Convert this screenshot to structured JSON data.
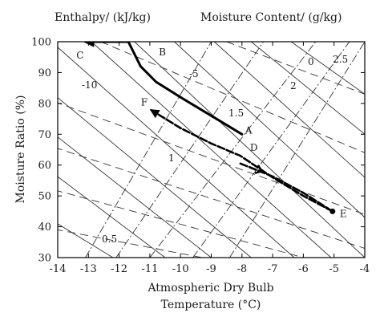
{
  "chart_data": {
    "type": "line",
    "title_left": "Enthalpy/ (kJ/kg)",
    "title_right": "Moisture Content/ (g/kg)",
    "xlabel_line1": "Atmospheric Dry Bulb",
    "xlabel_line2": "Temperature (°C)",
    "ylabel": "Moisture Ratio (%)",
    "xlim": [
      -14,
      -4
    ],
    "ylim": [
      30,
      100
    ],
    "x_ticks": [
      -14,
      -13,
      -12,
      -11,
      -10,
      -9,
      -8,
      -7,
      -6,
      -5,
      -4
    ],
    "y_ticks": [
      30,
      40,
      50,
      60,
      70,
      80,
      90,
      100
    ],
    "grid": false,
    "enthalpy_isolines": [
      {
        "label": "-10",
        "x": [
          -14.5,
          -4
        ],
        "y": [
          82,
          44
        ]
      },
      {
        "label": "-5",
        "x": [
          -12.6,
          -4
        ],
        "y": [
          100,
          64
        ]
      },
      {
        "label": "0",
        "x": [
          -8.5,
          -4
        ],
        "y": [
          100,
          83
        ]
      },
      {
        "label": "",
        "x": [
          -14.5,
          -4
        ],
        "y": [
          67,
          33
        ]
      },
      {
        "label": "",
        "x": [
          -14.5,
          -6
        ],
        "y": [
          53,
          30
        ]
      },
      {
        "label": "",
        "x": [
          -14.5,
          -9.3
        ],
        "y": [
          40,
          30
        ]
      }
    ],
    "moisture_isolines": [
      {
        "label": "0.5",
        "x": [
          -13.1,
          -9.0
        ],
        "y": [
          30,
          100
        ]
      },
      {
        "label": "1",
        "x": [
          -12.1,
          -7.3
        ],
        "y": [
          30,
          100
        ]
      },
      {
        "label": "1.5",
        "x": [
          -11.0,
          -5.6
        ],
        "y": [
          30,
          100
        ]
      },
      {
        "label": "2",
        "x": [
          -9.6,
          -4.5
        ],
        "y": [
          30,
          100
        ]
      },
      {
        "label": "2.5",
        "x": [
          -8.4,
          -4.0
        ],
        "y": [
          30,
          100
        ]
      }
    ],
    "temperature_isolines": [
      {
        "x": [
          -14.5,
          -12.2
        ],
        "y": [
          44,
          30
        ]
      },
      {
        "x": [
          -14.5,
          -10.5
        ],
        "y": [
          60,
          30
        ]
      },
      {
        "x": [
          -14.5,
          -9.0
        ],
        "y": [
          73,
          30
        ]
      },
      {
        "x": [
          -14.5,
          -7.7
        ],
        "y": [
          86,
          30
        ]
      },
      {
        "x": [
          -14.2,
          -6.3
        ],
        "y": [
          100,
          30
        ]
      },
      {
        "x": [
          -12.9,
          -5.1
        ],
        "y": [
          100,
          30
        ]
      },
      {
        "x": [
          -11.5,
          -4.0
        ],
        "y": [
          100,
          30
        ]
      },
      {
        "x": [
          -10.2,
          -4.0
        ],
        "y": [
          100,
          43
        ]
      },
      {
        "x": [
          -8.9,
          -4.0
        ],
        "y": [
          100,
          56
        ]
      },
      {
        "x": [
          -7.7,
          -4.0
        ],
        "y": [
          100,
          70
        ]
      },
      {
        "x": [
          -6.4,
          -4.0
        ],
        "y": [
          100,
          83
        ]
      }
    ],
    "points": [
      {
        "label": "A",
        "x": -8.0,
        "y": 70,
        "dx": 4,
        "dy": -1
      },
      {
        "label": "B",
        "x": -11.7,
        "y": 100,
        "dx": 38,
        "dy": 17
      },
      {
        "label": "C",
        "x": -13.0,
        "y": 100,
        "dx": -15,
        "dy": 21
      },
      {
        "label": "D",
        "x": -8.05,
        "y": 63,
        "dx": 12,
        "dy": -6
      },
      {
        "label": "E",
        "x": -5.05,
        "y": 45,
        "dx": 9,
        "dy": 7
      },
      {
        "label": "F",
        "x": -10.95,
        "y": 77.8,
        "dx": -13,
        "dy": -6
      }
    ],
    "series": [
      {
        "style": "solid",
        "x": [
          -8.0,
          -9.0,
          -10.0,
          -10.8,
          -11.3,
          -11.7,
          -12.35,
          -13.1
        ],
        "y": [
          70.0,
          76.0,
          82.0,
          87.0,
          92.0,
          100.0,
          100.0,
          100.0
        ],
        "arrow_end": true
      },
      {
        "style": "dashed",
        "x": [
          -5.05,
          -6.0,
          -7.0,
          -8.05,
          -9.0,
          -10.0,
          -10.95
        ],
        "y": [
          45.0,
          50.0,
          56.0,
          63.0,
          67.0,
          72.0,
          77.8
        ],
        "arrow_end": true
      },
      {
        "style": "dashed",
        "x": [
          -8.05,
          -7.0,
          -6.0,
          -5.05
        ],
        "y": [
          60.5,
          56.3,
          51.0,
          45.0
        ],
        "arrow_mid": [
          -7.35,
          58.0
        ],
        "marker_end": true
      }
    ]
  }
}
